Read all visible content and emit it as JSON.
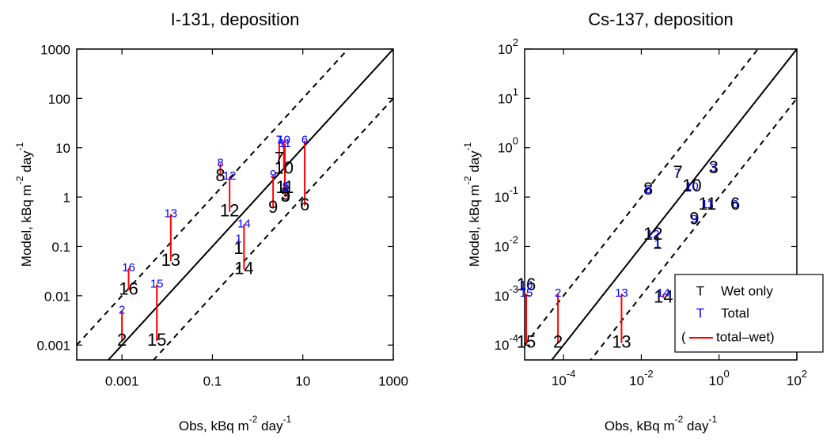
{
  "chart_data": [
    {
      "type": "scatter",
      "title": "I-131, deposition",
      "xlabel": [
        "Obs, kBq m",
        "-2",
        " day",
        "-1"
      ],
      "ylabel": [
        "Model, kBq m",
        "-2",
        " day",
        "-1"
      ],
      "log": true,
      "xlim": [
        0.0001,
        1000
      ],
      "ylim": [
        0.0005,
        1000
      ],
      "xticks": [
        0.001,
        0.1,
        10,
        1000
      ],
      "yticks": [
        0.001,
        0.01,
        0.1,
        1,
        10,
        100,
        1000
      ],
      "labels": [
        "1",
        "2",
        "3",
        "5",
        "6",
        "7",
        "8",
        "9",
        "10",
        "11",
        "12",
        "13",
        "14",
        "15",
        "16"
      ],
      "x": [
        0.38,
        0.001,
        4.1,
        4.2,
        11,
        3,
        0.15,
        2.2,
        3.8,
        4,
        0.24,
        0.012,
        0.5,
        0.0059,
        0.0014
      ],
      "series": [
        {
          "name": "Wet only",
          "color": "#000000",
          "values": [
            0.087,
            0.0012,
            1.0,
            1.1,
            0.67,
            5.8,
            2.6,
            0.6,
            3.7,
            1.5,
            0.5,
            0.05,
            0.034,
            0.0012,
            0.013
          ]
        },
        {
          "name": "Total",
          "color": "#0000ff",
          "values": [
            0.14,
            0.005,
            1.5,
            1.6,
            14,
            14,
            4.8,
            2.8,
            14,
            12,
            2.6,
            0.45,
            0.28,
            0.017,
            0.036
          ]
        }
      ],
      "difference_color": "#ff0000"
    },
    {
      "type": "scatter",
      "title": "Cs-137, deposition",
      "xlabel": [
        "Obs, kBq m",
        "-2",
        " day",
        "-1"
      ],
      "ylabel": [
        "Model, kBq m",
        "-2",
        " day",
        "-1"
      ],
      "log": true,
      "xlim": [
        1e-05,
        100
      ],
      "ylim": [
        5e-05,
        100
      ],
      "xticks": [
        {
          "value": 0.0001,
          "label": "10",
          "exponent": "-4"
        },
        {
          "value": 0.01,
          "label": "10",
          "exponent": "-2"
        },
        {
          "value": 1,
          "label": "10",
          "exponent": "0"
        },
        {
          "value": 100,
          "label": "10",
          "exponent": "2"
        }
      ],
      "yticks": [
        {
          "value": 0.0001,
          "label": "10",
          "exponent": "-4"
        },
        {
          "value": 0.001,
          "label": "10",
          "exponent": "-3"
        },
        {
          "value": 0.01,
          "label": "10",
          "exponent": "-2"
        },
        {
          "value": 0.1,
          "label": "10",
          "exponent": "-1"
        },
        {
          "value": 1,
          "label": "10",
          "exponent": "0"
        },
        {
          "value": 10,
          "label": "10",
          "exponent": "1"
        },
        {
          "value": 100,
          "label": "10",
          "exponent": "2"
        }
      ],
      "labels": [
        "1",
        "2",
        "3",
        "6",
        "7",
        "8",
        "9",
        "10",
        "11",
        "12",
        "13",
        "14",
        "15",
        "16"
      ],
      "x": [
        0.026,
        7.2e-05,
        0.72,
        2.6,
        0.087,
        0.015,
        0.23,
        0.2,
        0.5,
        0.02,
        0.0031,
        0.037,
        1.1e-05,
        1.1e-05
      ],
      "series": [
        {
          "name": "Wet only",
          "color": "#000000",
          "values": [
            0.011,
            0.00011,
            0.38,
            0.069,
            0.3,
            0.14,
            0.035,
            0.16,
            0.069,
            0.017,
            0.00011,
            0.0009,
            0.00011,
            0.0016
          ]
        },
        {
          "name": "Total",
          "color": "#0000ff",
          "values": [
            0.011,
            0.0011,
            0.38,
            0.069,
            0.3,
            0.14,
            0.035,
            0.16,
            0.069,
            0.017,
            0.0011,
            0.0011,
            0.0011,
            0.0016
          ]
        }
      ],
      "difference_color": "#ff0000",
      "legend": {
        "position": "lower right",
        "marker": "T",
        "bracket": "(",
        "difference": "total–wet)"
      }
    }
  ]
}
